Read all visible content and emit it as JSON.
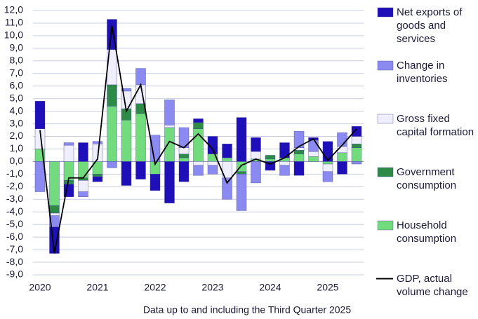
{
  "chart_data": {
    "type": "bar",
    "subtitle": "Data up to and including the Third Quarter 2025",
    "categories": [
      "2020",
      null,
      null,
      null,
      "2021",
      null,
      null,
      null,
      "2022",
      null,
      null,
      null,
      "2023",
      null,
      null,
      null,
      "2024",
      null,
      null,
      null,
      "2025",
      null,
      null
    ],
    "stacked": true,
    "grid": true,
    "legend": "right",
    "ylim": [
      -9,
      12
    ],
    "yticks": [
      {
        "value": 12,
        "label": "12,0"
      },
      {
        "value": 11,
        "label": "11,0"
      },
      {
        "value": 10,
        "label": "10,0"
      },
      {
        "value": 9,
        "label": "9,0"
      },
      {
        "value": 8,
        "label": "8,0"
      },
      {
        "value": 7,
        "label": "7,0"
      },
      {
        "value": 6,
        "label": "6,0"
      },
      {
        "value": 5,
        "label": "5,0"
      },
      {
        "value": 4,
        "label": "4,0"
      },
      {
        "value": 3,
        "label": "3,0"
      },
      {
        "value": 2,
        "label": "2,0"
      },
      {
        "value": 1,
        "label": "1,0"
      },
      {
        "value": 0,
        "label": "0,0"
      },
      {
        "value": -1,
        "label": "-1,0"
      },
      {
        "value": -2,
        "label": "-2,0"
      },
      {
        "value": -3,
        "label": "-3,0"
      },
      {
        "value": -4,
        "label": "-4,0"
      },
      {
        "value": -5,
        "label": "-5,0"
      },
      {
        "value": -6,
        "label": "-6,0"
      },
      {
        "value": -7,
        "label": "-7,0"
      },
      {
        "value": -8,
        "label": "-8,0"
      },
      {
        "value": -9,
        "label": "-9,0"
      }
    ],
    "series": [
      {
        "name": "Net exports of goods and services",
        "color": "#1f0fb8",
        "type": "bar",
        "values": [
          2.2,
          -2.1,
          -1.0,
          1.5,
          -0.4,
          2.4,
          -1.9,
          -1.4,
          -1.3,
          -3.3,
          -1.6,
          0.3,
          1.4,
          1.1,
          3.5,
          1.1,
          -0.7,
          1.2,
          -1.1,
          0.2,
          1.6,
          -1.0,
          0.8
        ]
      },
      {
        "name": "Change in inventories",
        "color": "#8a8af0",
        "type": "bar",
        "values": [
          -2.4,
          -0.9,
          0.2,
          -0.4,
          0.2,
          -0.5,
          0.2,
          1.3,
          2.1,
          2.0,
          1.6,
          -0.8,
          -0.7,
          -1.7,
          -2.9,
          -1.7,
          0.0,
          -0.8,
          1.3,
          0.9,
          -0.8,
          1.1,
          -0.2
        ]
      },
      {
        "name": "Gross fixed capital formation",
        "color": "#eeeefc",
        "type": "bar",
        "values": [
          1.6,
          -0.2,
          1.3,
          -0.9,
          1.4,
          2.8,
          1.4,
          1.5,
          0.0,
          0.2,
          0.5,
          -0.3,
          -0.3,
          -1.3,
          0.0,
          0.6,
          0.0,
          -0.3,
          0.2,
          0.4,
          -0.6,
          0.5,
          0.6
        ]
      },
      {
        "name": "Government consumption",
        "color": "#2e8b47",
        "type": "bar",
        "values": [
          0.0,
          -0.6,
          -0.3,
          -0.2,
          -0.2,
          1.7,
          0.9,
          0.8,
          0.0,
          0.0,
          0.3,
          0.5,
          0.0,
          0.0,
          -0.2,
          0.0,
          0.3,
          0.0,
          0.3,
          0.0,
          0.0,
          0.0,
          0.3
        ]
      },
      {
        "name": "Household consumption",
        "color": "#72dc7c",
        "type": "bar",
        "values": [
          1.0,
          -3.5,
          -1.5,
          -1.3,
          -1.0,
          4.4,
          3.3,
          3.8,
          -1.0,
          2.7,
          0.3,
          2.6,
          0.6,
          0.3,
          -0.8,
          0.2,
          0.2,
          0.3,
          0.6,
          0.4,
          -0.2,
          0.7,
          1.1
        ]
      },
      {
        "name": "GDP, actual volume change",
        "color": "#000000",
        "type": "line",
        "values": [
          2.5,
          -7.3,
          -1.3,
          -1.3,
          0.2,
          10.8,
          4.0,
          6.1,
          -0.2,
          1.6,
          1.1,
          2.2,
          1.0,
          -1.7,
          -0.3,
          0.2,
          -0.2,
          0.3,
          1.2,
          1.8,
          0.1,
          1.3,
          2.6
        ]
      }
    ]
  }
}
